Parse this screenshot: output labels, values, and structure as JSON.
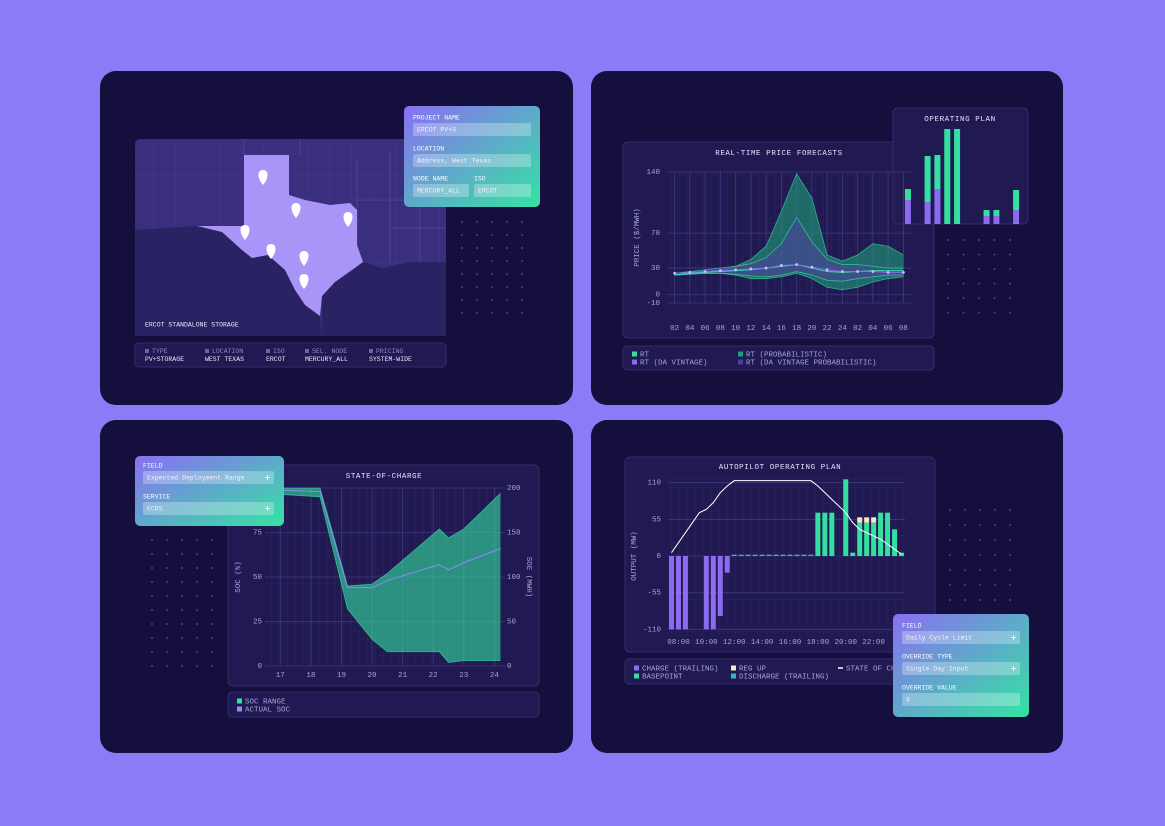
{
  "map_panel": {
    "caption": "ERCOT STANDALONE STORAGE",
    "summary": [
      {
        "label": "TYPE",
        "value": "PV+STORAGE"
      },
      {
        "label": "LOCATION",
        "value": "WEST TEXAS"
      },
      {
        "label": "ISO",
        "value": "ERCOT"
      },
      {
        "label": "SEL. NODE",
        "value": "MERCURY_ALL"
      },
      {
        "label": "PRICING",
        "value": "SYSTEM-WIDE"
      }
    ]
  },
  "project_form": {
    "fields": [
      {
        "label": "PROJECT NAME",
        "value": "ERCOT PV+S"
      },
      {
        "label": "LOCATION",
        "value": "Address, West Texas"
      },
      {
        "label": "NODE NAME",
        "value": "MERCURY_ALL"
      },
      {
        "label": "ISO",
        "value": "ERCOT"
      }
    ]
  },
  "soc_form": {
    "fields": [
      {
        "label": "FIELD",
        "value": "Expected Deployment Range"
      },
      {
        "label": "SERVICE",
        "value": "ECRS"
      }
    ]
  },
  "override_form": {
    "fields": [
      {
        "label": "FIELD",
        "value": "Daily Cycle Limit"
      },
      {
        "label": "OVERRIDE TYPE",
        "value": "Single Day Input"
      },
      {
        "label": "OVERRIDE VALUE",
        "value": "6"
      }
    ]
  },
  "chart_data": [
    {
      "type": "line",
      "title": "REAL-TIME PRICE FORECASTS",
      "y_label": "PRICE ($/MWH)",
      "categories": [
        "02",
        "04",
        "06",
        "08",
        "10",
        "12",
        "14",
        "16",
        "18",
        "20",
        "22",
        "24",
        "02",
        "04",
        "06",
        "08"
      ],
      "ylim": [
        -10,
        140
      ],
      "yticks": [
        140,
        70,
        30,
        0,
        -10
      ],
      "grid": true,
      "series": [
        {
          "name": "RT",
          "color": "#34e0a1",
          "values": [
            22,
            24,
            25,
            26,
            27,
            28,
            30,
            32,
            34,
            30,
            26,
            25,
            26,
            27,
            27,
            27
          ]
        },
        {
          "name": "RT (PROBABILISTIC)",
          "color": "#1f9e7a",
          "low": [
            22,
            23,
            24,
            24,
            22,
            18,
            18,
            20,
            24,
            18,
            8,
            5,
            8,
            14,
            18,
            20
          ],
          "high": [
            22,
            25,
            26,
            28,
            32,
            40,
            55,
            95,
            138,
            110,
            45,
            38,
            45,
            58,
            55,
            45
          ]
        },
        {
          "name": "RT (DA VINTAGE)",
          "color": "#8b6cf0",
          "marker": "circle",
          "values": [
            24,
            25,
            26,
            27,
            28,
            29,
            30,
            33,
            34,
            31,
            28,
            26,
            26,
            26,
            25,
            25
          ]
        },
        {
          "name": "RT (DA VINTAGE PROBABILISTIC)",
          "color": "#4e3f99",
          "low": [
            22,
            23,
            24,
            24,
            23,
            21,
            20,
            22,
            26,
            22,
            16,
            15,
            18,
            20,
            22,
            22
          ],
          "high": [
            24,
            26,
            28,
            30,
            32,
            35,
            42,
            58,
            88,
            60,
            40,
            34,
            34,
            32,
            30,
            30
          ]
        }
      ]
    },
    {
      "type": "bar",
      "title": "OPERATING PLAN",
      "stacked": true,
      "categories": [
        null,
        null,
        null,
        null,
        null,
        null,
        null,
        null,
        null,
        null,
        null,
        null
      ],
      "ylim": [
        0,
        100
      ],
      "series": [
        {
          "color": "#8b6cf0",
          "values": [
            24,
            0,
            22,
            35,
            0,
            0,
            0,
            0,
            8,
            8,
            0,
            14
          ]
        },
        {
          "color": "#34e0a1",
          "values": [
            11,
            0,
            46,
            34,
            95,
            95,
            0,
            0,
            6,
            6,
            0,
            20
          ]
        }
      ]
    },
    {
      "type": "line",
      "title": "STATE-OF-CHARGE",
      "y_label": "SOC (%)",
      "y2_label": "SOE (MWH)",
      "x": [
        16.5,
        18.3,
        19.2,
        20,
        20.5,
        22.2,
        22.5,
        23,
        24.2
      ],
      "xlim": [
        16.5,
        24.25
      ],
      "xticks": [
        17,
        18,
        19,
        20,
        21,
        22,
        23,
        24
      ],
      "ylim": [
        0,
        100
      ],
      "yticks": [
        0,
        25,
        50,
        75,
        100
      ],
      "y2lim": [
        0,
        200
      ],
      "y2ticks": [
        0,
        50,
        100,
        150,
        200
      ],
      "grid": true,
      "series": [
        {
          "name": "SOC RANGE",
          "color": "#34e0a1",
          "low": [
            97,
            95,
            32,
            15,
            8,
            8,
            2,
            3,
            3
          ],
          "high": [
            100,
            100,
            45,
            46,
            52,
            77,
            72,
            77,
            97
          ]
        },
        {
          "name": "ACTUAL SOC",
          "color": "#8b8cf5",
          "values": [
            99,
            98,
            44,
            44,
            48,
            57,
            54,
            58,
            66
          ]
        }
      ]
    },
    {
      "type": "bar",
      "title": "AUTOPILOT OPERATING PLAN",
      "y_label": "OUTPUT (MW)",
      "stacked": true,
      "categories": [
        null,
        "08:00",
        null,
        null,
        null,
        "10:00",
        null,
        null,
        null,
        "12:00",
        null,
        null,
        null,
        "14:00",
        null,
        null,
        null,
        "16:00",
        null,
        null,
        null,
        "18:00",
        null,
        null,
        null,
        "20:00",
        null,
        null,
        null,
        "22:00",
        null,
        null,
        null,
        null
      ],
      "ylim": [
        -120,
        120
      ],
      "yticks": [
        110,
        55,
        0,
        -55,
        -110
      ],
      "grid": true,
      "series": [
        {
          "name": "CHARGE (TRAILING)",
          "color": "#8b6cf0",
          "values": [
            -110,
            -110,
            -110,
            0,
            0,
            -110,
            -110,
            -90,
            -25,
            0,
            0,
            0,
            0,
            0,
            0,
            0,
            0,
            0,
            0,
            0,
            0,
            0,
            0,
            0,
            0,
            0,
            0,
            0,
            0,
            0,
            0,
            0,
            0,
            0
          ]
        },
        {
          "name": "BASEPOINT",
          "color": "#34e0a1",
          "values": [
            0,
            0,
            0,
            0,
            0,
            0,
            0,
            0,
            0,
            0,
            0,
            0,
            0,
            0,
            0,
            0,
            0,
            0,
            0,
            0,
            0,
            65,
            65,
            65,
            0,
            115,
            5,
            50,
            50,
            50,
            65,
            65,
            40,
            5
          ]
        },
        {
          "name": "REG UP",
          "color": "#f6e7c1",
          "values": [
            0,
            0,
            0,
            0,
            0,
            0,
            0,
            0,
            0,
            0,
            0,
            0,
            0,
            0,
            0,
            0,
            0,
            0,
            0,
            0,
            0,
            0,
            0,
            0,
            0,
            0,
            0,
            8,
            8,
            8,
            0,
            0,
            0,
            0
          ]
        },
        {
          "name": "DISCHARGE (TRAILING)",
          "color": "#3bb3c3",
          "values": [
            0,
            0,
            0,
            0,
            0,
            0,
            0,
            0,
            0,
            2,
            2,
            2,
            2,
            2,
            2,
            2,
            2,
            2,
            2,
            2,
            2,
            0,
            0,
            0,
            0,
            0,
            0,
            0,
            0,
            0,
            0,
            0,
            0,
            0
          ]
        },
        {
          "name": "STATE OF CHARGE",
          "color": "#ffffff",
          "type": "line",
          "values": [
            5,
            20,
            35,
            50,
            65,
            70,
            80,
            95,
            105,
            113,
            113,
            113,
            113,
            113,
            113,
            113,
            113,
            113,
            113,
            113,
            113,
            105,
            95,
            85,
            75,
            65,
            50,
            40,
            35,
            30,
            25,
            18,
            10,
            3
          ]
        }
      ]
    }
  ]
}
